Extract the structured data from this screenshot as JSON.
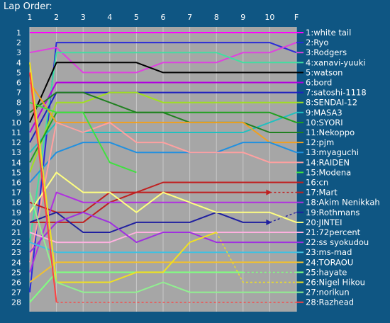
{
  "chart_data": {
    "type": "line",
    "title": "Lap Order:",
    "x_ticks": [
      "1",
      "2",
      "3",
      "4",
      "5",
      "6",
      "7",
      "8",
      "9",
      "10",
      "F"
    ],
    "y_ticks": [
      "1",
      "2",
      "3",
      "4",
      "5",
      "6",
      "7",
      "8",
      "9",
      "10",
      "11",
      "12",
      "13",
      "14",
      "15",
      "16",
      "17",
      "18",
      "19",
      "20",
      "21",
      "22",
      "23",
      "24",
      "25",
      "26",
      "27",
      "28"
    ],
    "ylim": [
      1,
      28
    ],
    "y_inverted": true,
    "grid": true,
    "plot_background": "#a6a6a6",
    "grid_color": "#c8c8c8",
    "dashed_note": "dashed segments indicate retired drivers",
    "series": [
      {
        "name": "1:white tail",
        "color": "#ff00ff",
        "positions": [
          1,
          1,
          1,
          1,
          1,
          1,
          1,
          1,
          1,
          1,
          1
        ]
      },
      {
        "name": "2:Ryo",
        "color": "#2a2ad8",
        "positions": [
          27,
          2,
          2,
          2,
          2,
          2,
          2,
          2,
          2,
          2,
          3
        ]
      },
      {
        "name": "3:Rodgers",
        "color": "#e040e0",
        "positions": [
          3,
          2.5,
          5,
          5,
          5,
          4,
          4,
          4,
          3,
          3,
          2
        ]
      },
      {
        "name": "4:xanavi-yuuki",
        "color": "#40e0a0",
        "positions": [
          22,
          3,
          3,
          3,
          3,
          3,
          3,
          3,
          4,
          4,
          4
        ]
      },
      {
        "name": "5:watson",
        "color": "#000000",
        "positions": [
          10,
          4,
          4,
          4,
          4,
          5,
          5,
          5,
          5,
          5,
          5
        ]
      },
      {
        "name": "6:bord",
        "color": "#b000e0",
        "positions": [
          11,
          6,
          6,
          6,
          6,
          6,
          6,
          6,
          6,
          6,
          6
        ]
      },
      {
        "name": "7:satoshi-1118",
        "color": "#2020c0",
        "positions": [
          12,
          7,
          7,
          7,
          7,
          7,
          7,
          7,
          7,
          7,
          7
        ]
      },
      {
        "name": "8:SENDAI-12",
        "color": "#a0e020",
        "positions": [
          15,
          8,
          8,
          7,
          7,
          8,
          8,
          8,
          8,
          8,
          8
        ]
      },
      {
        "name": "9:MASA3",
        "color": "#20c0c0",
        "positions": [
          13,
          10,
          11,
          11,
          11,
          11,
          11,
          11,
          11,
          10,
          9
        ]
      },
      {
        "name": "10:SYORI",
        "color": "#20a020",
        "positions": [
          14,
          9,
          9,
          9,
          9,
          9,
          9,
          9,
          9,
          9,
          10
        ]
      },
      {
        "name": "11:Nekoppo",
        "color": "#208020",
        "positions": [
          9,
          7,
          7,
          8,
          9,
          9,
          10,
          10,
          10,
          11,
          11
        ]
      },
      {
        "name": "12:pjm",
        "color": "#f0a020",
        "positions": [
          6,
          10,
          10,
          10,
          10,
          10,
          10,
          10,
          10,
          12,
          12
        ]
      },
      {
        "name": "13:myaguchi",
        "color": "#2090e0",
        "positions": [
          16,
          13,
          12,
          12,
          13,
          13,
          13,
          13,
          12,
          12,
          13
        ]
      },
      {
        "name": "14:RAIDEN",
        "color": "#ffa0a0",
        "positions": [
          24,
          10,
          11,
          10,
          12,
          12,
          13,
          13,
          13,
          14,
          14
        ]
      },
      {
        "name": "15:Modena",
        "color": "#40e040",
        "positions": [
          8,
          9,
          9,
          14,
          15
        ]
      },
      {
        "name": "16:cn",
        "color": "#c02020",
        "positions": [
          20,
          20,
          20,
          18,
          17,
          16,
          16,
          16,
          16,
          16,
          16
        ]
      },
      {
        "name": "17:Mart",
        "color": "#c02020",
        "positions": [
          18,
          19,
          19,
          17,
          17,
          17,
          17,
          17,
          17,
          17,
          17
        ],
        "retired_after": 9
      },
      {
        "name": "18:Akim Nenikkah",
        "color": "#b030e0",
        "positions": [
          25,
          17,
          18,
          18,
          18,
          18,
          18,
          18,
          18,
          18,
          18
        ]
      },
      {
        "name": "19:Rothmans",
        "color": "#2020a0",
        "positions": [
          20,
          19,
          21,
          21,
          20,
          20,
          20,
          19,
          20,
          20,
          19
        ],
        "retired_after": 9
      },
      {
        "name": "20:JINTEI",
        "color": "#ffff80",
        "positions": [
          19,
          15,
          17,
          17,
          19,
          17,
          18,
          19,
          19,
          19,
          20
        ]
      },
      {
        "name": "21:72percent",
        "color": "#ffb0e0",
        "positions": [
          21,
          22,
          22,
          22,
          21,
          21,
          21,
          21,
          21,
          21,
          21
        ]
      },
      {
        "name": "22:ss  syokudou",
        "color": "#a030e0",
        "positions": [
          23,
          20,
          19,
          20,
          22,
          21,
          21,
          22,
          22,
          22,
          22
        ]
      },
      {
        "name": "23:ms-mad",
        "color": "#40c0e0",
        "positions": [
          22,
          23,
          23,
          23,
          23,
          23,
          23,
          23,
          23,
          23,
          23
        ]
      },
      {
        "name": "24:TORAOU",
        "color": "#f0c030",
        "positions": [
          26,
          24,
          24,
          24,
          24,
          24,
          24,
          24,
          24,
          24,
          24
        ]
      },
      {
        "name": "25:hayate",
        "color": "#80ff80",
        "positions": [
          28,
          25,
          25,
          25,
          25,
          25,
          25,
          25,
          25,
          25,
          25
        ],
        "retired_after": 8
      },
      {
        "name": "26:Nigel Hikou",
        "color": "#f0e020",
        "positions": [
          4,
          26,
          26,
          26,
          25,
          25,
          22,
          21,
          26,
          26,
          26
        ],
        "retired_after": 7
      },
      {
        "name": "27:norikun",
        "color": "#90f090",
        "positions": [
          17,
          26,
          27,
          27,
          27,
          26,
          27,
          27,
          27,
          27,
          27
        ]
      },
      {
        "name": "28:Razhead",
        "color": "#ff4040",
        "positions": [
          5,
          28,
          28,
          28,
          28,
          28,
          28,
          28,
          28,
          28,
          28
        ],
        "retired_after": 1
      }
    ]
  }
}
